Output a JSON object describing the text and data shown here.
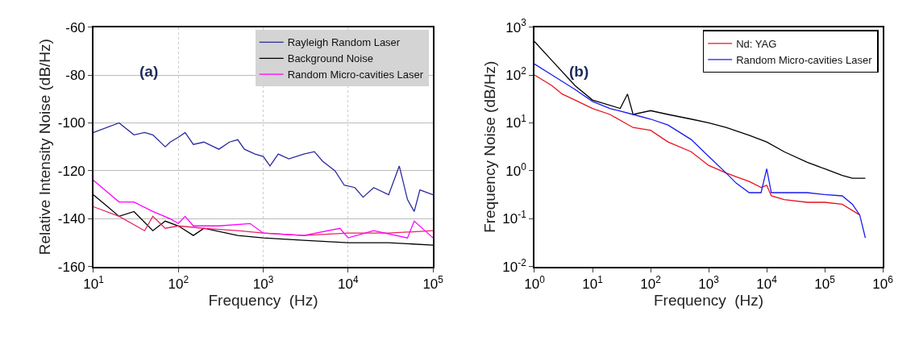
{
  "chart_data": [
    {
      "type": "line",
      "xlabel": "Frequency  (Hz)",
      "ylabel": "Relative Intensity Noise (dB/Hz)",
      "annotations": [
        "(a)"
      ],
      "log": "x",
      "grid": true,
      "legend": "top right",
      "xlim": [
        10,
        100000
      ],
      "xticks": [
        {
          "value": 10,
          "label": "10$^{1}$"
        },
        {
          "value": 100,
          "label": "10$^{2}$"
        },
        {
          "value": 1000,
          "label": "10$^{3}$"
        },
        {
          "value": 10000,
          "label": "10$^{4}$"
        },
        {
          "value": 100000,
          "label": "10$^{5}$"
        }
      ],
      "ylim": [
        -160,
        -60
      ],
      "yticks": [
        -160,
        -140,
        -120,
        -100,
        -80,
        -60
      ],
      "series": [
        {
          "name": "Rayleigh Random Laser",
          "color": "#2a2a9c",
          "x": [
            10,
            20,
            30,
            40,
            50,
            70,
            80,
            100,
            120,
            150,
            200,
            300,
            400,
            500,
            600,
            800,
            1000,
            1200,
            1500,
            2000,
            3000,
            4000,
            5000,
            7000,
            9000,
            12000,
            15000,
            20000,
            30000,
            40000,
            50000,
            60000,
            70000,
            100000
          ],
          "values": [
            -104,
            -100,
            -105,
            -104,
            -105,
            -110,
            -108,
            -106,
            -104,
            -109,
            -108,
            -111,
            -108,
            -107,
            -111,
            -113,
            -114,
            -118,
            -113,
            -115,
            -113,
            -112,
            -116,
            -120,
            -126,
            -127,
            -131,
            -127,
            -130,
            -118,
            -132,
            -137,
            -128,
            -130
          ]
        },
        {
          "name": "Background Noise",
          "color": "#000000",
          "x": [
            10,
            20,
            30,
            50,
            70,
            100,
            150,
            200,
            500,
            1000,
            3000,
            10000,
            30000,
            100000
          ],
          "values": [
            -130,
            -139,
            -137,
            -145,
            -141,
            -143,
            -147,
            -144,
            -147,
            -148,
            -149,
            -150,
            -150,
            -151
          ]
        },
        {
          "color": "#e8245c",
          "x": [
            10,
            20,
            40,
            50,
            70,
            100,
            200,
            500,
            1000,
            3000,
            10000,
            30000,
            100000
          ],
          "values": [
            -135,
            -139,
            -145,
            -139,
            -144,
            -143,
            -144,
            -145,
            -146,
            -147,
            -146,
            -146,
            -145
          ]
        },
        {
          "name": "Random Micro-cavities Laser",
          "color": "#ff00ff",
          "x": [
            10,
            20,
            30,
            50,
            80,
            100,
            120,
            150,
            300,
            700,
            1000,
            3000,
            8000,
            10000,
            20000,
            50000,
            60000,
            100000
          ],
          "values": [
            -124,
            -133,
            -133,
            -137,
            -140,
            -142,
            -139,
            -143,
            -143,
            -142,
            -146,
            -147,
            -144,
            -148,
            -145,
            -148,
            -141,
            -148
          ]
        }
      ]
    },
    {
      "type": "line",
      "xlabel": "Frequency  (Hz)",
      "ylabel": "Frequency Noise (dB/Hz)",
      "annotations": [
        "(b)"
      ],
      "log": "xy",
      "legend": "top right",
      "xlim": [
        1,
        1000000
      ],
      "xticks": [
        {
          "value": 1,
          "label": "10$^{0}$"
        },
        {
          "value": 10,
          "label": "10$^{1}$"
        },
        {
          "value": 100,
          "label": "10$^{2}$"
        },
        {
          "value": 1000,
          "label": "10$^{3}$"
        },
        {
          "value": 10000,
          "label": "10$^{4}$"
        },
        {
          "value": 100000,
          "label": "10$^{5}$"
        },
        {
          "value": 1000000,
          "label": "10$^{6}$"
        }
      ],
      "ylim": [
        0.01,
        1000
      ],
      "yticks": [
        {
          "value": 0.01,
          "label": "10$^{-2}$"
        },
        {
          "value": 0.1,
          "label": "10$^{-1}$"
        },
        {
          "value": 1,
          "label": "10$^{0}$"
        },
        {
          "value": 10,
          "label": "10$^{1}$"
        },
        {
          "value": 100,
          "label": "10$^{2}$"
        },
        {
          "value": 1000,
          "label": "10$^{3}$"
        }
      ],
      "series": [
        {
          "name": "Nd: YAG",
          "color": "#e8121e",
          "x": [
            1,
            2,
            3,
            5,
            10,
            20,
            50,
            100,
            200,
            500,
            1000,
            2000,
            3000,
            5000,
            8000,
            10000,
            12000,
            20000,
            50000,
            100000,
            200000,
            400000
          ],
          "values": [
            100,
            60,
            40,
            30,
            20,
            15,
            8,
            7,
            4,
            2.5,
            1.3,
            0.9,
            0.75,
            0.6,
            0.45,
            0.5,
            0.3,
            0.25,
            0.22,
            0.22,
            0.2,
            0.12
          ]
        },
        {
          "color": "#000000",
          "x": [
            1,
            2,
            5,
            10,
            30,
            40,
            50,
            100,
            200,
            500,
            1000,
            2000,
            5000,
            10000,
            20000,
            50000,
            100000,
            200000,
            300000,
            500000
          ],
          "values": [
            500,
            200,
            60,
            30,
            20,
            40,
            15,
            18,
            15,
            12,
            10,
            8,
            5.5,
            4,
            2.5,
            1.5,
            1.1,
            0.8,
            0.7,
            0.7
          ]
        },
        {
          "name": "Random Micro-cavities Laser",
          "color": "#1a1aee",
          "x": [
            1,
            2,
            5,
            10,
            20,
            50,
            100,
            200,
            500,
            1000,
            2000,
            3000,
            5000,
            8000,
            10000,
            12000,
            20000,
            50000,
            100000,
            200000,
            300000,
            400000,
            500000
          ],
          "values": [
            170,
            100,
            50,
            28,
            20,
            15,
            12,
            9,
            4.5,
            2,
            0.9,
            0.55,
            0.35,
            0.35,
            1.1,
            0.35,
            0.35,
            0.35,
            0.32,
            0.3,
            0.2,
            0.12,
            0.04
          ]
        }
      ]
    }
  ]
}
